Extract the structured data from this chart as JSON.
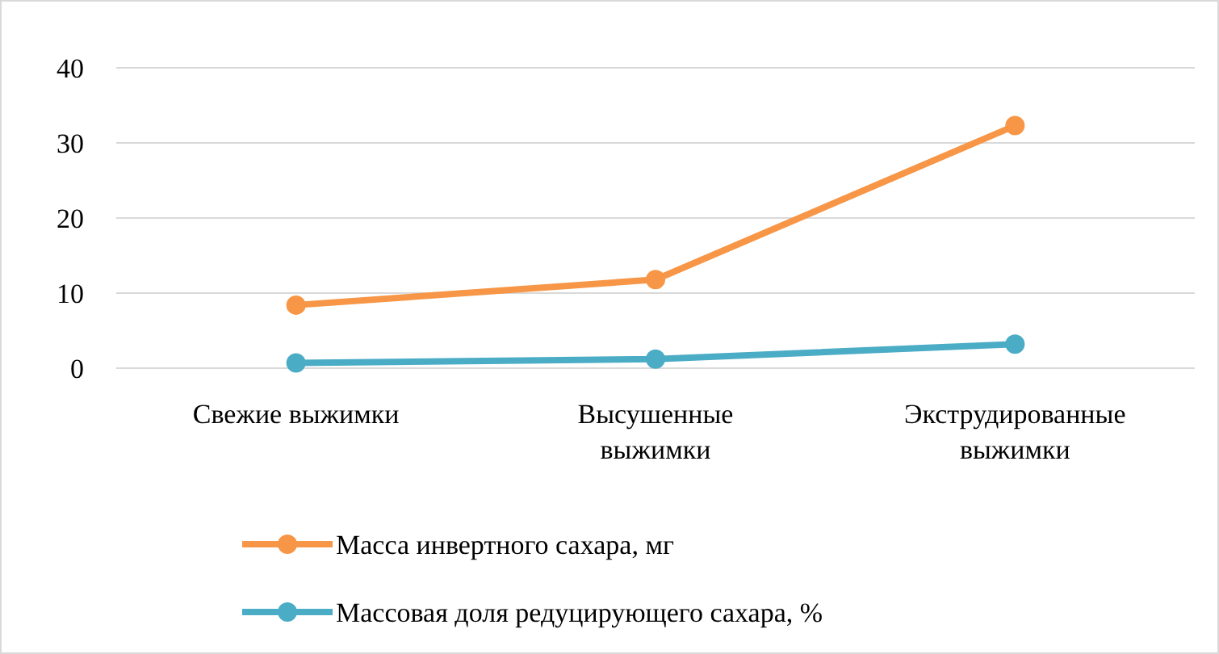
{
  "chart_data": {
    "type": "line",
    "categories": [
      "Свежие выжимки",
      "Высушенные выжимки",
      "Экструдированные выжимки"
    ],
    "series": [
      {
        "name": "Масса инвертного сахара, мг",
        "color": "#f79646",
        "values": [
          8.4,
          11.8,
          32.3
        ]
      },
      {
        "name": "Массовая доля редуцирующего сахара, %",
        "color": "#4bacc6",
        "values": [
          0.7,
          1.2,
          3.2
        ]
      }
    ],
    "ylim": [
      0,
      40
    ],
    "yticks": [
      0,
      10,
      20,
      30,
      40
    ],
    "grid": "y",
    "legend": "bottom",
    "marker": "circle",
    "line_style": "solid"
  }
}
